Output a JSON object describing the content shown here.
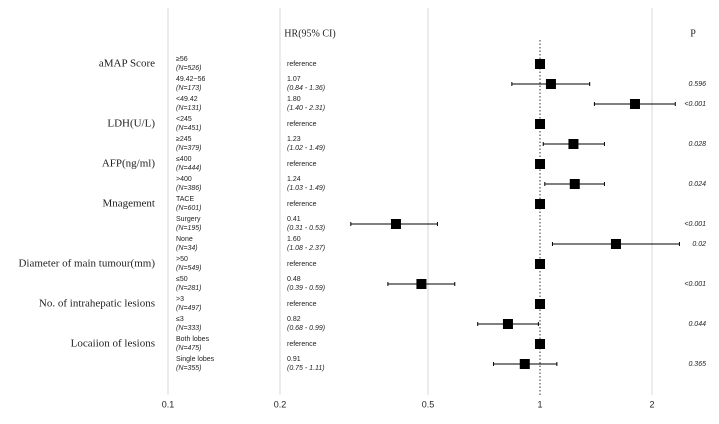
{
  "chart_data": {
    "type": "forest",
    "column_headers": [
      "HR(95% CI)",
      "P"
    ],
    "group_labels": [
      "aMAP Score",
      null,
      null,
      "LDH(U/L)",
      null,
      "AFP(ng/ml)",
      null,
      "Mnagement",
      null,
      null,
      "Diameter of main tumour(mm)",
      null,
      "No. of intrahepatic lesions",
      null,
      "Locaiion of lesions",
      null
    ],
    "categories": [
      "≥56",
      "49.42~56",
      "<49.42",
      "<245",
      "≥245",
      "≤400",
      ">400",
      "TACE",
      "Surgery",
      "None",
      ">50",
      "≤50",
      ">3",
      "≤3",
      "Both lobes",
      "Single lobes"
    ],
    "n_labels": [
      "(N=526)",
      "(N=173)",
      "(N=131)",
      "(N=451)",
      "(N=379)",
      "(N=444)",
      "(N=386)",
      "(N=601)",
      "(N=195)",
      "(N=34)",
      "(N=549)",
      "(N=281)",
      "(N=497)",
      "(N=333)",
      "(N=475)",
      "(N=355)"
    ],
    "values": [
      1,
      1.07,
      1.8,
      1,
      1.23,
      1,
      1.24,
      1,
      0.41,
      1.6,
      1,
      0.48,
      1,
      0.82,
      1,
      0.91
    ],
    "value_labels": [
      "reference",
      null,
      "1.80",
      "reference",
      null,
      "reference",
      null,
      "reference",
      null,
      "1.60",
      "reference",
      null,
      "reference",
      null,
      "reference",
      null
    ],
    "ci_low": [
      null,
      0.84,
      1.4,
      null,
      1.02,
      null,
      1.03,
      null,
      0.31,
      1.08,
      null,
      0.39,
      null,
      0.68,
      null,
      0.75
    ],
    "ci_high": [
      null,
      1.36,
      2.31,
      null,
      1.49,
      null,
      1.49,
      null,
      0.53,
      2.37,
      null,
      0.59,
      null,
      0.99,
      null,
      1.11
    ],
    "ci_labels": [
      null,
      "(0.84 - 1.36)",
      "(1.40 - 2.31)",
      null,
      "(1.02 - 1.49)",
      null,
      "(1.03 - 1.49)",
      null,
      "(0.31 - 0.53)",
      "(1.08 - 2.37)",
      null,
      "(0.39 - 0.59)",
      null,
      "(0.68 - 0.99)",
      null,
      "(0.75 - 1.11)"
    ],
    "p_labels": [
      null,
      "0.596",
      "<0.001",
      null,
      "0.028",
      null,
      "0.024",
      null,
      "<0.001",
      "0.02",
      null,
      "<0.001",
      null,
      "0.044",
      null,
      "0.365"
    ],
    "xlim": [
      0.1,
      2
    ],
    "xticks": [
      0.1,
      0.2,
      0.5,
      1,
      2
    ],
    "log_x": true,
    "grid": true,
    "reference_line": 1,
    "color": "#000000"
  }
}
